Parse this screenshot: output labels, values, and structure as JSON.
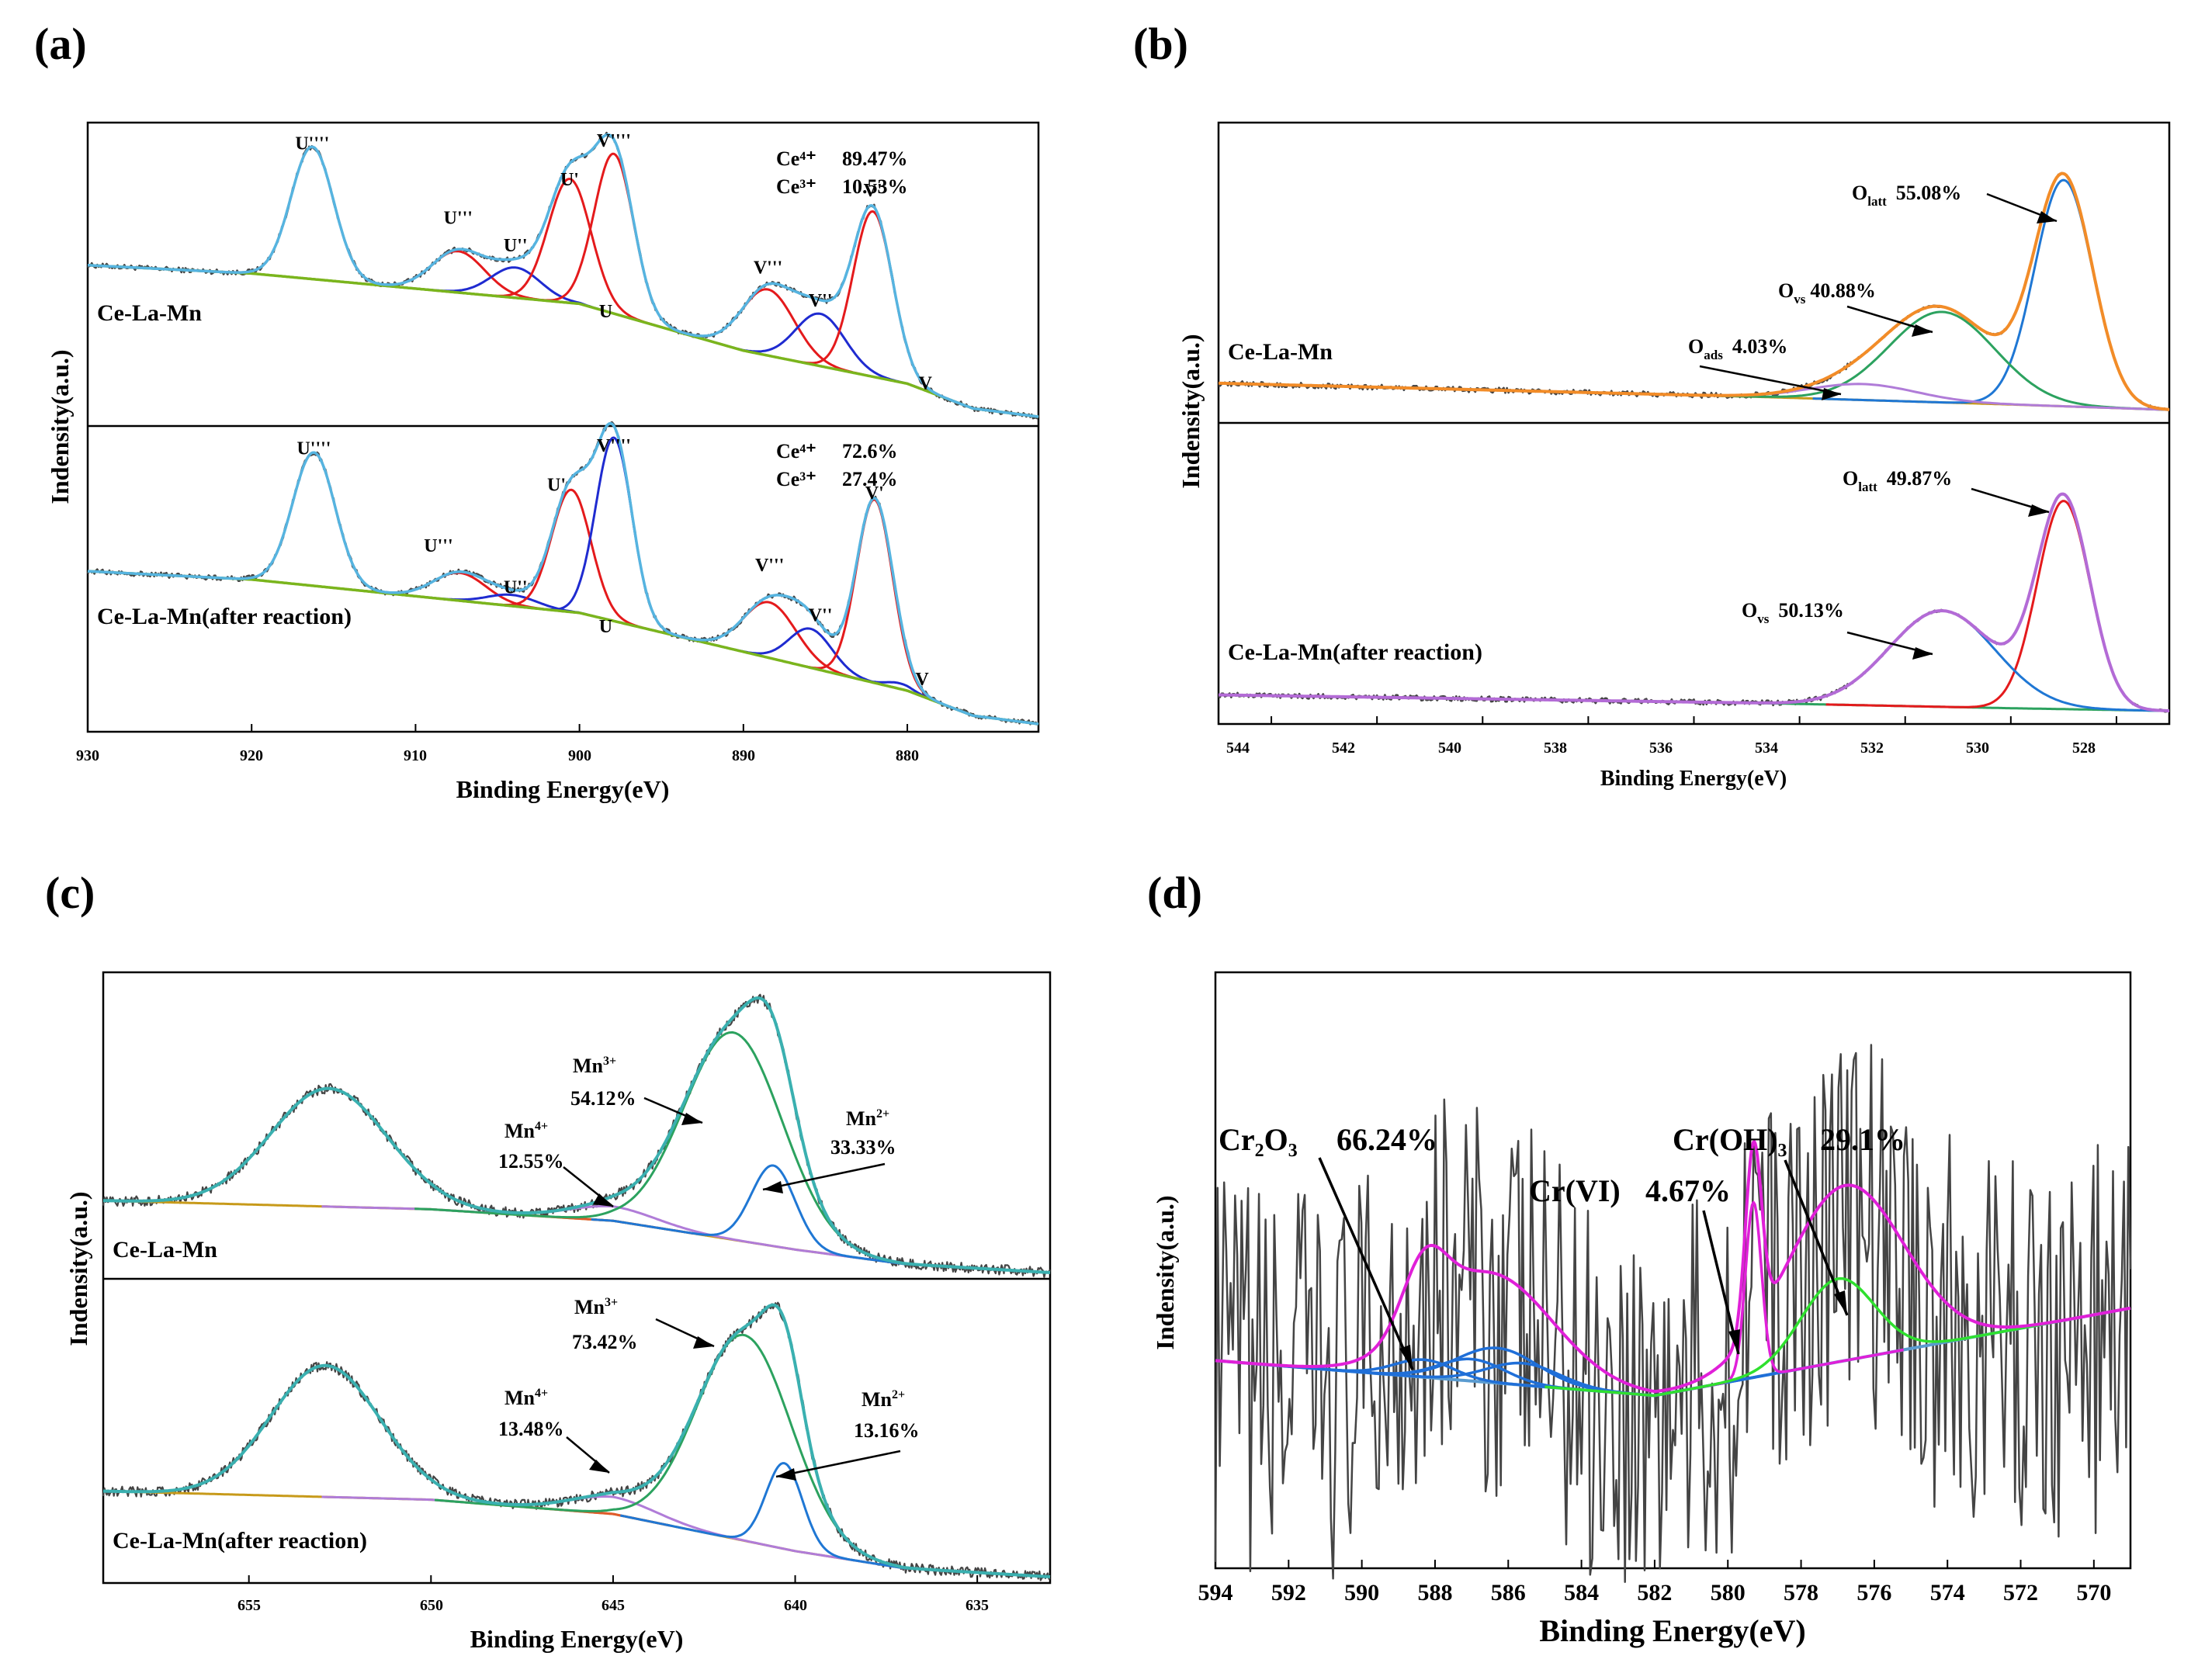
{
  "chart_data": [
    {
      "type": "line",
      "panel": "(a)",
      "title": "",
      "xlabel": "Binding Energy(eV)",
      "ylabel": "Indensity(a.u.)",
      "xlim": [
        930,
        872
      ],
      "ylim": [
        0,
        1
      ],
      "x_ticks": [
        930,
        920,
        910,
        900,
        890,
        880
      ],
      "x_tick_labels": [
        "930",
        "920",
        "910",
        "900",
        "890",
        "880"
      ],
      "colors": {
        "raw": "#444444",
        "fit": "#56b4e0",
        "red": "#e41a1c",
        "blue": "#1f2bd0",
        "bg": "#7ab51d"
      },
      "subplots": [
        {
          "sample": "Ce-La-Mn",
          "summary": [
            {
              "label": "Ce⁴⁺",
              "value": "89.47%"
            },
            {
              "label": "Ce³⁺",
              "value": "10.53%"
            }
          ],
          "peak_labels": [
            "U''''",
            "U'''",
            "U''",
            "U'",
            "U",
            "V''''",
            "V'''",
            "V''",
            "V'",
            "V"
          ],
          "background": [
            [
              930,
              0.55
            ],
            [
              920,
              0.52
            ],
            [
              900,
              0.41
            ],
            [
              890,
              0.24
            ],
            [
              880,
              0.12
            ],
            [
              876,
              0.03
            ],
            [
              872,
              0.0
            ]
          ],
          "peaks": [
            {
              "label": "U''''",
              "center": 916.3,
              "height": 0.48,
              "width": 1.3,
              "color": "red",
              "label_at": [
                916.3,
                0.97
              ]
            },
            {
              "label": "U'''",
              "center": 907.4,
              "height": 0.15,
              "width": 1.6,
              "color": "red",
              "label_at": [
                907.4,
                0.7
              ]
            },
            {
              "label": "U''",
              "center": 903.9,
              "height": 0.11,
              "width": 1.5,
              "color": "blue",
              "label_at": [
                903.9,
                0.6
              ]
            },
            {
              "label": "U'",
              "center": 900.6,
              "height": 0.45,
              "width": 1.3,
              "color": "red",
              "label_at": [
                900.6,
                0.84
              ]
            },
            {
              "label": "U",
              "center": 898.4,
              "height": 0.0,
              "width": 1.0,
              "color": "red",
              "label_at": [
                898.4,
                0.36
              ]
            },
            {
              "label": "V''''",
              "center": 897.9,
              "height": 0.58,
              "width": 1.2,
              "color": "red",
              "label_at": [
                897.9,
                0.98
              ]
            },
            {
              "label": "V'''",
              "center": 888.5,
              "height": 0.24,
              "width": 1.6,
              "color": "red",
              "label_at": [
                888.5,
                0.52
              ]
            },
            {
              "label": "V''",
              "center": 885.3,
              "height": 0.19,
              "width": 1.5,
              "color": "blue",
              "label_at": [
                885.3,
                0.4
              ]
            },
            {
              "label": "V'",
              "center": 882.1,
              "height": 0.6,
              "width": 1.2,
              "color": "red",
              "label_at": [
                882.1,
                0.8
              ]
            },
            {
              "label": "V",
              "center": 880.4,
              "height": 0.0,
              "width": 1.0,
              "color": "red",
              "label_at": [
                878.9,
                0.1
              ]
            }
          ]
        },
        {
          "sample": "Ce-La-Mn(after reaction)",
          "summary": [
            {
              "label": "Ce⁴⁺",
              "value": "72.6%"
            },
            {
              "label": "Ce³⁺",
              "value": "27.4%"
            }
          ],
          "peak_labels": [
            "U''''",
            "U'''",
            "U''",
            "U'",
            "U",
            "V''''",
            "V'''",
            "V''",
            "V'",
            "V"
          ],
          "background": [
            [
              930,
              0.55
            ],
            [
              920,
              0.52
            ],
            [
              900,
              0.4
            ],
            [
              890,
              0.26
            ],
            [
              880,
              0.12
            ],
            [
              876,
              0.03
            ],
            [
              872,
              0.0
            ]
          ],
          "peaks": [
            {
              "label": "U''''",
              "center": 916.2,
              "height": 0.48,
              "width": 1.3,
              "color": "red",
              "label_at": [
                916.2,
                0.97
              ]
            },
            {
              "label": "U'''",
              "center": 907.3,
              "height": 0.1,
              "width": 1.6,
              "color": "red",
              "label_at": [
                908.6,
                0.62
              ]
            },
            {
              "label": "U''",
              "center": 904.1,
              "height": 0.04,
              "width": 1.5,
              "color": "blue",
              "label_at": [
                903.9,
                0.47
              ]
            },
            {
              "label": "U'",
              "center": 900.5,
              "height": 0.44,
              "width": 1.2,
              "color": "red",
              "label_at": [
                901.4,
                0.84
              ]
            },
            {
              "label": "U",
              "center": 898.4,
              "height": 0.0,
              "width": 1.0,
              "color": "red",
              "label_at": [
                898.4,
                0.33
              ]
            },
            {
              "label": "V''''",
              "center": 897.9,
              "height": 0.66,
              "width": 1.1,
              "color": "blue",
              "label_at": [
                897.9,
                0.98
              ]
            },
            {
              "label": "V'''",
              "center": 888.4,
              "height": 0.2,
              "width": 1.6,
              "color": "red",
              "label_at": [
                888.4,
                0.55
              ]
            },
            {
              "label": "V''",
              "center": 885.9,
              "height": 0.14,
              "width": 1.3,
              "color": "blue",
              "label_at": [
                885.3,
                0.37
              ]
            },
            {
              "label": "V'",
              "center": 882.0,
              "height": 0.66,
              "width": 1.1,
              "color": "red",
              "label_at": [
                882.0,
                0.81
              ]
            },
            {
              "label": "V",
              "center": 880.5,
              "height": 0.02,
              "width": 0.8,
              "color": "blue",
              "label_at": [
                879.1,
                0.14
              ]
            }
          ]
        }
      ]
    },
    {
      "type": "line",
      "panel": "(b)",
      "title": "",
      "xlabel": "Binding Energy(eV)",
      "ylabel": "Indensity(a.u.)",
      "xlim": [
        545,
        527
      ],
      "ylim": [
        0,
        1
      ],
      "x_ticks": [
        544,
        542,
        540,
        538,
        536,
        534,
        532,
        530,
        528
      ],
      "x_tick_labels": [
        "544",
        "542",
        "540",
        "538",
        "536",
        "534",
        "532",
        "530",
        "528"
      ],
      "colors": {
        "raw": "#444444",
        "fit_top": "#f28c28",
        "fit_bottom": "#b36bd6",
        "latt_top": "#1f77d4",
        "vs_top": "#2ca25f",
        "ads_top": "#b07cd8",
        "latt_bottom": "#e41a1c",
        "vs_bottom": "#1f77d4",
        "bg_top": "#c79a1a",
        "bg_bottom": "#2ca25f"
      },
      "subplots": [
        {
          "sample": "Ce-La-Mn",
          "background": [
            [
              545,
              0.12
            ],
            [
              535,
              0.07
            ],
            [
              530,
              0.04
            ],
            [
              527,
              0.02
            ]
          ],
          "components": [
            {
              "name": "O_latt",
              "label": "O",
              "sub": "latt",
              "value": "55.08%",
              "center": 529.0,
              "height": 0.85,
              "width": 0.55,
              "color": "latt_top"
            },
            {
              "name": "O_vs",
              "label": "O",
              "sub": "vs",
              "value": "40.88%",
              "center": 531.3,
              "height": 0.34,
              "width": 1.0,
              "color": "vs_top"
            },
            {
              "name": "O_ads",
              "label": "O",
              "sub": "ads",
              "value": "4.03%",
              "center": 532.8,
              "height": 0.06,
              "width": 1.0,
              "color": "ads_top"
            }
          ]
        },
        {
          "sample": "Ce-La-Mn(after reaction)",
          "background": [
            [
              545,
              0.08
            ],
            [
              535,
              0.05
            ],
            [
              530,
              0.03
            ],
            [
              527,
              0.02
            ]
          ],
          "components": [
            {
              "name": "O_latt",
              "label": "O",
              "sub": "latt",
              "value": "49.87%",
              "center": 529.0,
              "height": 0.78,
              "width": 0.5,
              "color": "latt_bottom"
            },
            {
              "name": "O_vs",
              "label": "O",
              "sub": "vs",
              "value": "50.13%",
              "center": 531.3,
              "height": 0.36,
              "width": 1.0,
              "color": "vs_bottom"
            }
          ]
        }
      ]
    },
    {
      "type": "line",
      "panel": "(c)",
      "title": "",
      "xlabel": "Binding Energy(eV)",
      "ylabel": "Indensity(a.u.)",
      "xlim": [
        659,
        633
      ],
      "ylim": [
        0,
        1
      ],
      "x_ticks": [
        655,
        650,
        645,
        640,
        635
      ],
      "x_tick_labels": [
        "655",
        "650",
        "645",
        "640",
        "635"
      ],
      "colors": {
        "raw": "#444444",
        "fit": "#3ab0b0",
        "Mn3": "#2ca25f",
        "Mn4": "#b07cd8",
        "Mn2": "#1f77d4",
        "sat": "#e05a2b",
        "bg": "#c79a1a"
      },
      "subplots": [
        {
          "sample": "Ce-La-Mn",
          "background": [
            [
              659,
              0.25
            ],
            [
              650,
              0.22
            ],
            [
              645,
              0.18
            ],
            [
              640,
              0.08
            ],
            [
              637,
              0.03
            ],
            [
              633,
              0.0
            ]
          ],
          "components": [
            {
              "name": "satellite",
              "center": 652.8,
              "height": 0.41,
              "width": 1.6,
              "color": "sat"
            },
            {
              "name": "Mn4+",
              "label": "Mn",
              "sup": "4+",
              "value": "12.55%",
              "center": 645.0,
              "height": 0.05,
              "width": 1.2,
              "color": "Mn4"
            },
            {
              "name": "Mn3+",
              "label": "Mn",
              "sup": "3+",
              "value": "54.12%",
              "center": 641.7,
              "height": 0.72,
              "width": 1.35,
              "color": "Mn3"
            },
            {
              "name": "Mn2+",
              "label": "Mn",
              "sup": "2+",
              "value": "33.33%",
              "center": 640.6,
              "height": 0.28,
              "width": 0.6,
              "color": "Mn2"
            }
          ]
        },
        {
          "sample": "Ce-La-Mn(after reaction)",
          "background": [
            [
              659,
              0.3
            ],
            [
              650,
              0.27
            ],
            [
              645,
              0.22
            ],
            [
              640,
              0.09
            ],
            [
              637,
              0.03
            ],
            [
              633,
              0.0
            ]
          ],
          "components": [
            {
              "name": "satellite",
              "center": 652.9,
              "height": 0.46,
              "width": 1.5,
              "color": "sat"
            },
            {
              "name": "Mn4+",
              "label": "Mn",
              "sup": "4+",
              "value": "13.48%",
              "center": 645.0,
              "height": 0.06,
              "width": 1.2,
              "color": "Mn4"
            },
            {
              "name": "Mn3+",
              "label": "Mn",
              "sup": "3+",
              "value": "73.42%",
              "center": 641.4,
              "height": 0.72,
              "width": 1.3,
              "color": "Mn3"
            },
            {
              "name": "Mn2+",
              "label": "Mn",
              "sup": "2+",
              "value": "13.16%",
              "center": 640.3,
              "height": 0.3,
              "width": 0.5,
              "color": "Mn2"
            }
          ]
        }
      ]
    },
    {
      "type": "line",
      "panel": "(d)",
      "title": "",
      "xlabel": "Binding Energy(eV)",
      "ylabel": "Indensity(a.u.)",
      "xlim": [
        594,
        569
      ],
      "ylim": [
        0,
        1
      ],
      "x_ticks": [
        594,
        592,
        590,
        588,
        586,
        584,
        582,
        580,
        578,
        576,
        574,
        572,
        570
      ],
      "x_tick_labels": [
        "594",
        "592",
        "590",
        "588",
        "586",
        "584",
        "582",
        "580",
        "578",
        "576",
        "574",
        "572",
        "570"
      ],
      "colors": {
        "raw": "#444444",
        "envelope": "#e020d8",
        "CrOH3": "#2fe02f",
        "Cr2O3": "#1f6fd8",
        "CrVI": "#e020d8",
        "bg": "#5a9bd0"
      },
      "annotations": [
        {
          "formula": "Cr₂O₃",
          "value": "66.24%"
        },
        {
          "formula": "Cr(VI)",
          "value": "4.67%"
        },
        {
          "formula": "Cr(OH)₃",
          "value": "29.1%"
        }
      ],
      "background": [
        [
          594,
          0.4
        ],
        [
          582,
          0.32
        ],
        [
          569,
          0.52
        ]
      ],
      "components": [
        {
          "name": "Cr2O3 a",
          "center": 588.3,
          "height": 0.04,
          "width": 0.8,
          "color": "Cr2O3"
        },
        {
          "name": "Cr2O3 b",
          "center": 587.0,
          "height": 0.05,
          "width": 0.9,
          "color": "Cr2O3"
        },
        {
          "name": "Cr2O3 c",
          "center": 586.3,
          "height": 0.08,
          "width": 1.1,
          "color": "Cr2O3"
        },
        {
          "name": "Cr2O3 d",
          "center": 585.6,
          "height": 0.05,
          "width": 1.0,
          "color": "Cr2O3"
        },
        {
          "name": "Cr(VI)",
          "center": 579.3,
          "height": 0.4,
          "width": 0.22,
          "color": "CrVI"
        },
        {
          "name": "Cr(OH)3",
          "center": 577.0,
          "height": 0.19,
          "width": 1.0,
          "color": "CrOH3"
        }
      ],
      "envelope_peaks": [
        {
          "center": 588.3,
          "height": 0.15,
          "width": 0.6
        },
        {
          "center": 586.5,
          "height": 0.25,
          "width": 1.7
        },
        {
          "center": 579.3,
          "height": 0.42,
          "width": 0.22
        },
        {
          "center": 576.8,
          "height": 0.4,
          "width": 1.6
        }
      ]
    }
  ]
}
